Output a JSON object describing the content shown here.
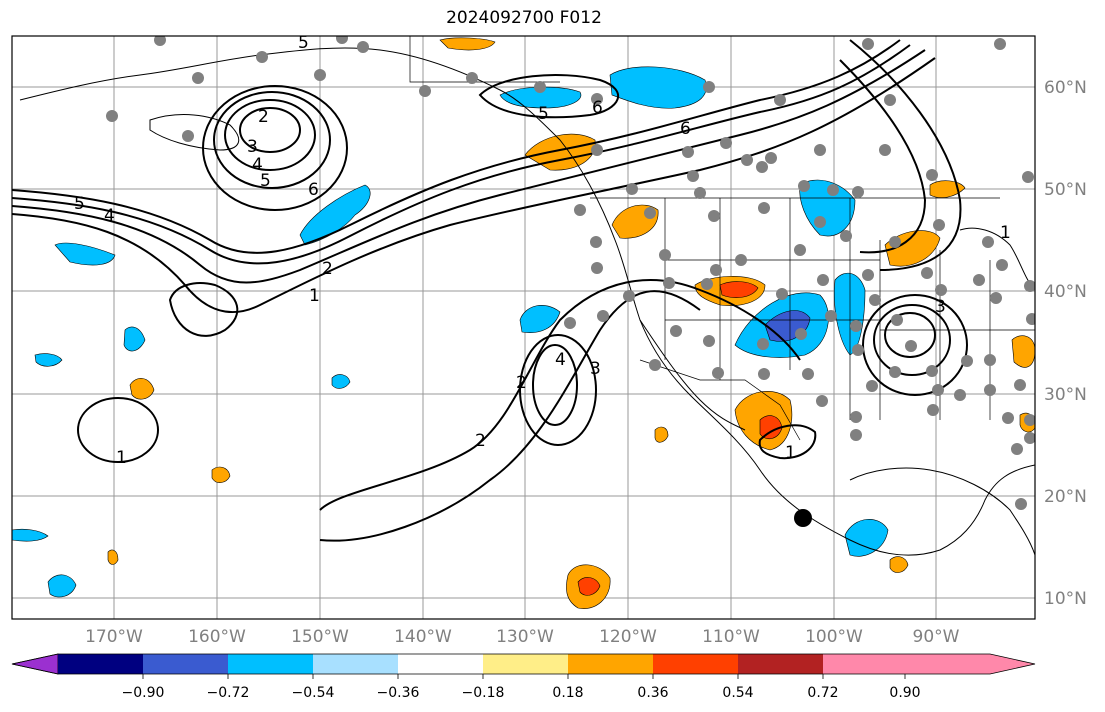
{
  "title": "2024092700 F012",
  "map": {
    "lat_labels": [
      "60°N",
      "50°N",
      "40°N",
      "30°N",
      "20°N",
      "10°N"
    ],
    "lon_labels": [
      "170°W",
      "160°W",
      "150°W",
      "140°W",
      "130°W",
      "120°W",
      "110°W",
      "100°W",
      "90°W"
    ],
    "contour_labels": [
      "5",
      "2",
      "3",
      "4",
      "5",
      "6",
      "5",
      "6",
      "6",
      "5",
      "4",
      "2",
      "1",
      "1",
      "4",
      "3",
      "2",
      "2",
      "1",
      "3",
      "1"
    ],
    "colors": {
      "axis_label": "#808080",
      "contour": "#000000",
      "coast": "#000000",
      "grid": "#999999",
      "station": "#808080"
    }
  },
  "colorbar": {
    "colors": [
      "#9b30d0",
      "#000080",
      "#3a5bd0",
      "#00bfff",
      "#a8e0ff",
      "#ffffff",
      "#ffee88",
      "#ffa500",
      "#ff4000",
      "#b22222",
      "#ff88aa"
    ],
    "tick_labels": [
      "−0.90",
      "−0.72",
      "−0.54",
      "−0.36",
      "−0.18",
      "0.18",
      "0.36",
      "0.54",
      "0.72",
      "0.90"
    ]
  }
}
